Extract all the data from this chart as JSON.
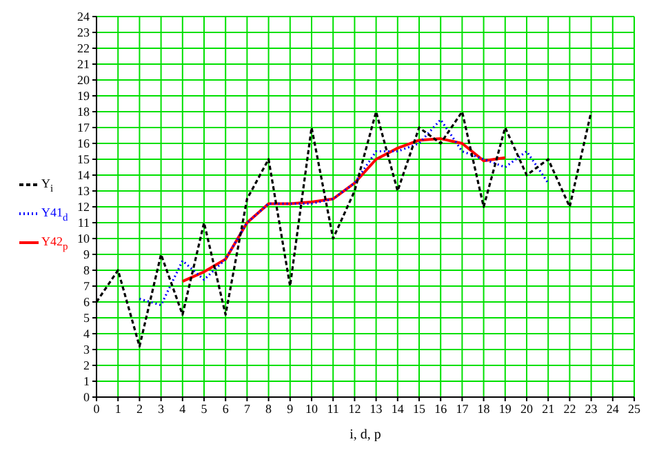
{
  "chart_data": {
    "type": "line",
    "xlabel": "i, d, p",
    "x": [
      0,
      1,
      2,
      3,
      4,
      5,
      6,
      7,
      8,
      9,
      10,
      11,
      12,
      13,
      14,
      15,
      16,
      17,
      18,
      19,
      20,
      21,
      22,
      23
    ],
    "series": [
      {
        "name": "Y$_{i}$",
        "color": "#000000",
        "line_style": "dashed",
        "values": [
          6,
          8,
          3.2,
          9,
          5.2,
          11,
          5.2,
          12.5,
          15,
          7,
          17,
          10,
          13,
          18,
          13,
          17,
          16,
          18,
          12,
          17,
          14,
          15,
          12,
          18
        ]
      },
      {
        "name": "Y41$_{d}$",
        "color": "#0000ff",
        "line_style": "dotted",
        "values": [
          null,
          null,
          6.2,
          5.8,
          8.6,
          7.4,
          8.7,
          11,
          12.2,
          12.2,
          12.2,
          12.5,
          13.5,
          15.5,
          15.5,
          16,
          17.5,
          15.5,
          15,
          14.5,
          15.5,
          13.5,
          null,
          null
        ]
      },
      {
        "name": "Y42$_{p}$",
        "color": "#ff0000",
        "line_style": "solid",
        "values": [
          null,
          null,
          null,
          null,
          7.3,
          7.9,
          8.7,
          11,
          12.2,
          12.2,
          12.3,
          12.5,
          13.5,
          15,
          15.7,
          16.2,
          16.3,
          16,
          14.9,
          15.1,
          null,
          null,
          null,
          null
        ]
      }
    ],
    "xlim": [
      0,
      25
    ],
    "xticks": [
      0,
      1,
      2,
      3,
      4,
      5,
      6,
      7,
      8,
      9,
      10,
      11,
      12,
      13,
      14,
      15,
      16,
      17,
      18,
      19,
      20,
      21,
      22,
      23,
      24,
      25
    ],
    "ylim": [
      0,
      24
    ],
    "yticks": [
      0,
      1,
      2,
      3,
      4,
      5,
      6,
      7,
      8,
      9,
      10,
      11,
      12,
      13,
      14,
      15,
      16,
      17,
      18,
      19,
      20,
      21,
      22,
      23,
      24
    ],
    "grid": true,
    "legend": "left",
    "marker": "none"
  }
}
